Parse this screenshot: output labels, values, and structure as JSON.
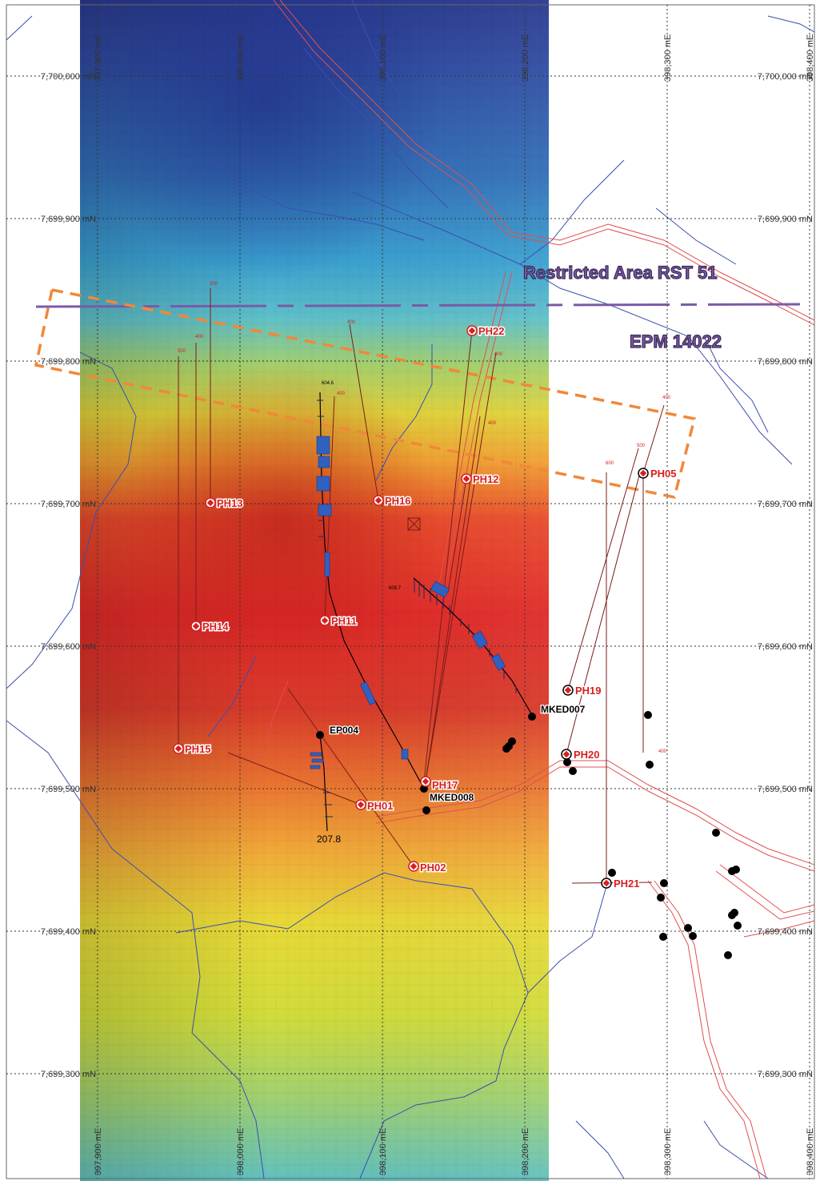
{
  "map": {
    "northing_labels": [
      "7,700,000 mN",
      "7,699,900 mN",
      "7,699,800 mN",
      "7,699,700 mN",
      "7,699,600 mN",
      "7,699,500 mN",
      "7,699,400 mN",
      "7,699,300 mN"
    ],
    "easting_labels": [
      "397,900 mE",
      "398,000 mE",
      "398,100 mE",
      "398,200 mE",
      "398,300 mE",
      "398,400 mE"
    ],
    "restricted_area_label": "Restricted Area RST 51",
    "epm_label": "EPM 14022",
    "planned_holes": [
      "PH22",
      "PH12",
      "PH05",
      "PH13",
      "PH16",
      "PH14",
      "PH11",
      "PH19",
      "PH15",
      "PH20",
      "PH17",
      "PH01",
      "PH02",
      "PH21"
    ],
    "existing_holes": [
      "EP004",
      "MKED007",
      "MKED008"
    ],
    "depth_labels": {
      "ep004_end": "207.8",
      "ep004_top": "604.6",
      "mked007_top": "609.7"
    },
    "trace_depth_labels": [
      "300",
      "400",
      "500",
      "400",
      "400",
      "400",
      "400",
      "500",
      "600",
      "400",
      "400"
    ],
    "colors": {
      "planned_marker": "#d62020",
      "tenement_boundary": "#f0883a",
      "restricted_boundary": "#7a5aa8",
      "drainage": "#3a4fb0",
      "road": "#e05050",
      "intercepts": "#3060c0"
    }
  }
}
